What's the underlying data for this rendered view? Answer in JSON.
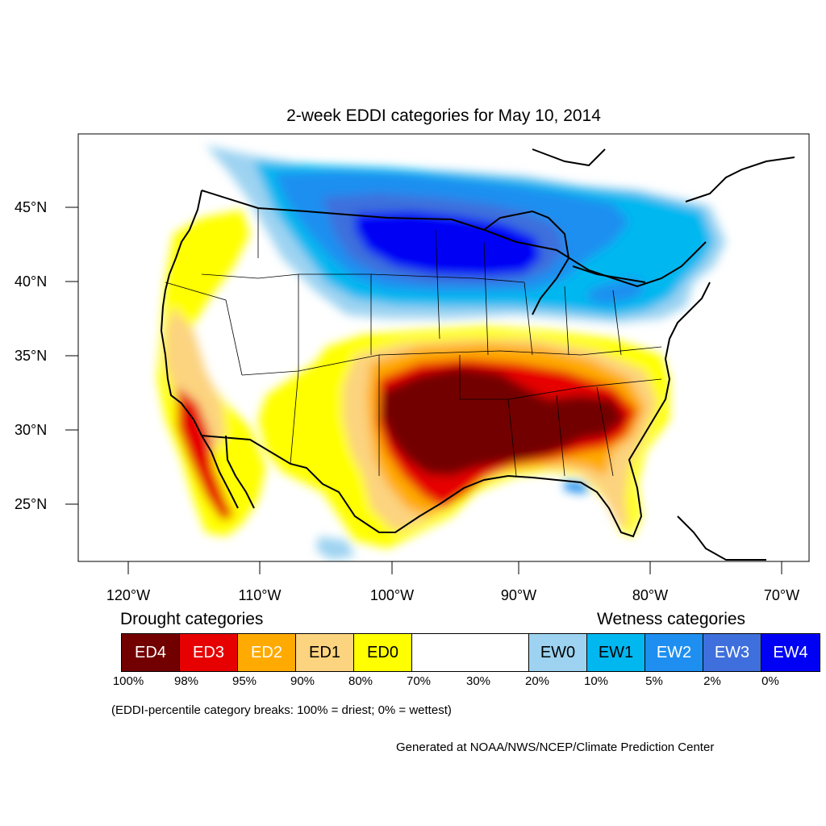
{
  "title": "2-week EDDI categories for May 10, 2014",
  "lat_labels": [
    "45°N",
    "40°N",
    "35°N",
    "30°N",
    "25°N"
  ],
  "lon_labels": [
    "120°W",
    "110°W",
    "100°W",
    "90°W",
    "80°W",
    "70°W"
  ],
  "drought_heading": "Drought categories",
  "wetness_heading": "Wetness categories",
  "legend": [
    {
      "label": "ED4",
      "color": "#730000",
      "text_color": "#ffffff"
    },
    {
      "label": "ED3",
      "color": "#e60000",
      "text_color": "#ffffff"
    },
    {
      "label": "ED2",
      "color": "#ffaa00",
      "text_color": "#ffffff"
    },
    {
      "label": "ED1",
      "color": "#fcd37f",
      "text_color": "#000000"
    },
    {
      "label": "ED0",
      "color": "#ffff00",
      "text_color": "#000000"
    },
    {
      "label": "",
      "color": "#ffffff",
      "text_color": "#000000"
    },
    {
      "label": "EW0",
      "color": "#9dd3f1",
      "text_color": "#000000"
    },
    {
      "label": "EW1",
      "color": "#00b7f0",
      "text_color": "#000000"
    },
    {
      "label": "EW2",
      "color": "#1e8ff0",
      "text_color": "#ffffff"
    },
    {
      "label": "EW3",
      "color": "#3e6fdc",
      "text_color": "#ffffff"
    },
    {
      "label": "EW4",
      "color": "#0000f5",
      "text_color": "#ffffff"
    }
  ],
  "percentile_breaks": [
    "100%",
    "98%",
    "95%",
    "90%",
    "80%",
    "70%",
    "30%",
    "20%",
    "10%",
    "5%",
    "2%",
    "0%"
  ],
  "note": "(EDDI-percentile category breaks: 100% = driest; 0% = wettest)",
  "credit": "Generated at NOAA/NWS/NCEP/Climate Prediction Center"
}
